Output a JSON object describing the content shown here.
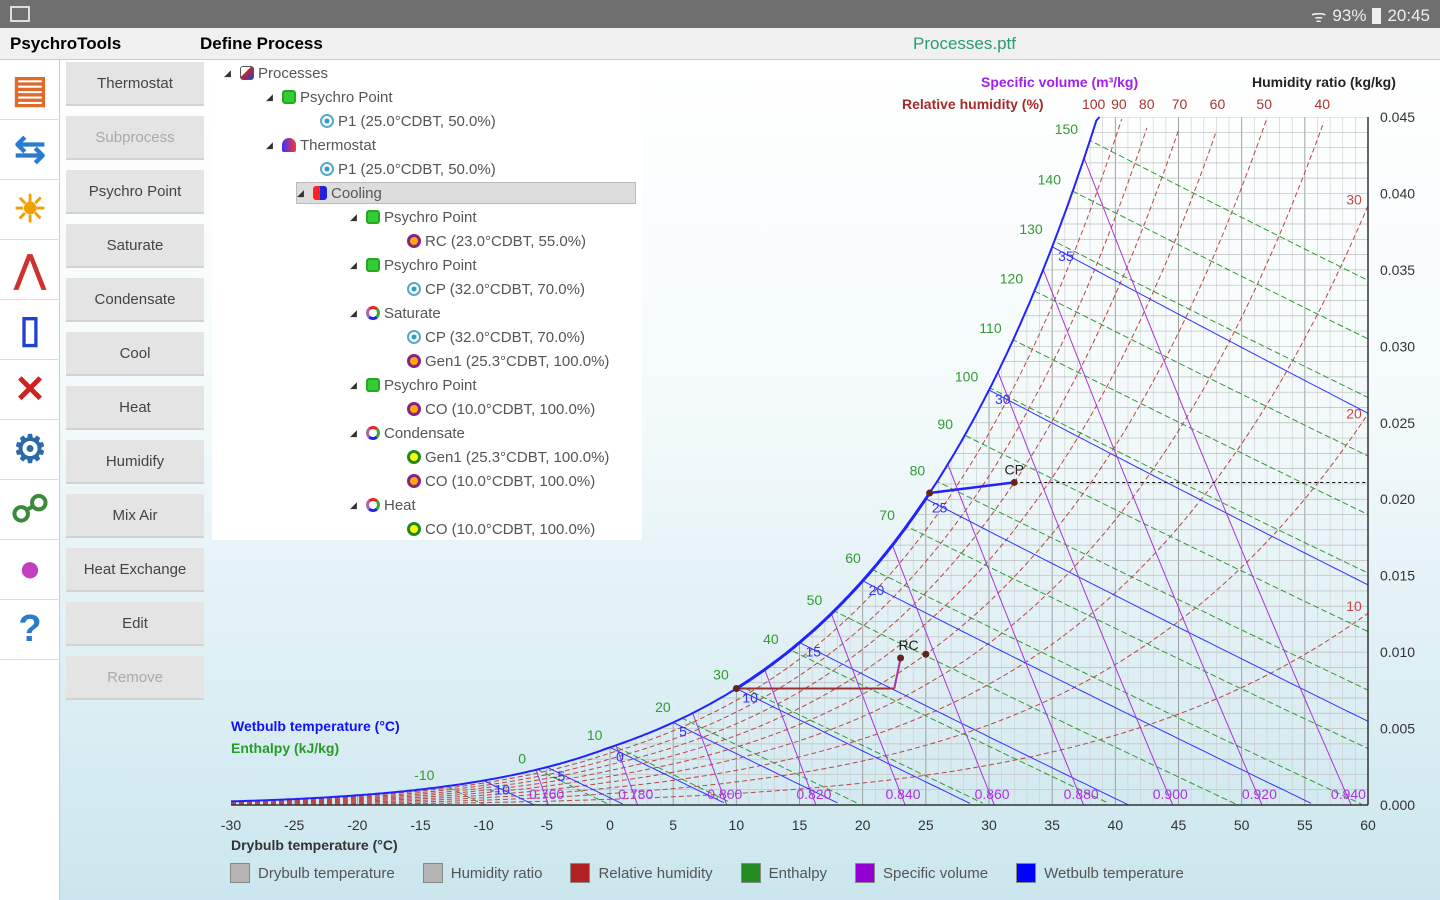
{
  "status": {
    "battery": "93%",
    "time": "20:45"
  },
  "titlebar": {
    "app": "PsychroTools",
    "page": "Define Process",
    "file": "Processes.ptf"
  },
  "icons": [
    "calculator-icon",
    "process-icon",
    "sun-icon",
    "distribution-icon",
    "document-icon",
    "exchange-icon",
    "gear-icon",
    "nodes-icon",
    "color-wheel-icon",
    "help-icon"
  ],
  "buttons": [
    {
      "label": "Thermostat",
      "enabled": true
    },
    {
      "label": "Subprocess",
      "enabled": false
    },
    {
      "label": "Psychro Point",
      "enabled": true
    },
    {
      "label": "Saturate",
      "enabled": true
    },
    {
      "label": "Condensate",
      "enabled": true
    },
    {
      "label": "Cool",
      "enabled": true
    },
    {
      "label": "Heat",
      "enabled": true
    },
    {
      "label": "Humidify",
      "enabled": true
    },
    {
      "label": "Mix Air",
      "enabled": true
    },
    {
      "label": "Heat Exchange",
      "enabled": true
    },
    {
      "label": "Edit",
      "enabled": true
    },
    {
      "label": "Remove",
      "enabled": false
    }
  ],
  "tree": [
    {
      "label": "Processes",
      "level": 0,
      "icon": "chart",
      "exp": true
    },
    {
      "label": "Psychro Point",
      "level": 1,
      "icon": "square",
      "exp": true
    },
    {
      "label": "P1 (25.0°CDBT, 50.0%)",
      "level": 2,
      "icon": "target"
    },
    {
      "label": "Thermostat",
      "level": 1,
      "icon": "thermostat",
      "exp": true
    },
    {
      "label": "P1 (25.0°CDBT, 50.0%)",
      "level": 2,
      "icon": "target"
    },
    {
      "label": "Cooling",
      "level": 2,
      "icon": "cooling",
      "exp": true,
      "selected": true
    },
    {
      "label": "Psychro Point",
      "level": 3,
      "icon": "square",
      "exp": true
    },
    {
      "label": "RC (23.0°CDBT, 55.0%)",
      "level": 4,
      "icon": "purple"
    },
    {
      "label": "Psychro Point",
      "level": 3,
      "icon": "square",
      "exp": true
    },
    {
      "label": "CP (32.0°CDBT, 70.0%)",
      "level": 4,
      "icon": "target"
    },
    {
      "label": "Saturate",
      "level": 3,
      "icon": "cycle",
      "exp": true
    },
    {
      "label": "CP (32.0°CDBT, 70.0%)",
      "level": 4,
      "icon": "target"
    },
    {
      "label": "Gen1 (25.3°CDBT, 100.0%)",
      "level": 4,
      "icon": "purple"
    },
    {
      "label": "Psychro Point",
      "level": 3,
      "icon": "square",
      "exp": true
    },
    {
      "label": "CO (10.0°CDBT, 100.0%)",
      "level": 4,
      "icon": "purple"
    },
    {
      "label": "Condensate",
      "level": 3,
      "icon": "cycle",
      "exp": true
    },
    {
      "label": "Gen1 (25.3°CDBT, 100.0%)",
      "level": 4,
      "icon": "green"
    },
    {
      "label": "CO (10.0°CDBT, 100.0%)",
      "level": 4,
      "icon": "purple"
    },
    {
      "label": "Heat",
      "level": 3,
      "icon": "cycle",
      "exp": true
    },
    {
      "label": "CO (10.0°CDBT, 100.0%)",
      "level": 4,
      "icon": "green"
    }
  ],
  "chart_data": {
    "type": "line",
    "title": "Psychrometric chart",
    "xlabel": "Drybulb temperature (°C)",
    "ylabel": "Humidity ratio (kg/kg)",
    "xlim": [
      -30,
      60
    ],
    "ylim": [
      0,
      0.045
    ],
    "xticks": [
      -30,
      -25,
      -20,
      -15,
      -10,
      -5,
      0,
      5,
      10,
      15,
      20,
      25,
      30,
      35,
      40,
      45,
      50,
      55,
      60
    ],
    "yticks": [
      "0.000",
      "0.005",
      "0.010",
      "0.015",
      "0.020",
      "0.025",
      "0.030",
      "0.035",
      "0.040",
      "0.045"
    ],
    "rh_label": "Relative humidity (%)",
    "rh_values": [
      10,
      20,
      30,
      40,
      50,
      60,
      70,
      80,
      90,
      100
    ],
    "sv_label": "Specific volume (m³/kg)",
    "sv_values": [
      "0.760",
      "0.780",
      "0.800",
      "0.820",
      "0.840",
      "0.860",
      "0.880",
      "0.900",
      "0.920",
      "0.940"
    ],
    "enthalpy_label": "Enthalpy (kJ/kg)",
    "enthalpy_values": [
      -10,
      0,
      10,
      20,
      30,
      40,
      50,
      60,
      70,
      80,
      90,
      100,
      110,
      120,
      130,
      140,
      150
    ],
    "wetbulb_label": "Wetbulb temperature (°C)",
    "wetbulb_values": [
      -10,
      -5,
      0,
      5,
      10,
      15,
      20,
      25,
      30,
      35
    ],
    "points": [
      {
        "name": "CP",
        "t": 32.0,
        "rh": 70
      },
      {
        "name": "Gen1",
        "t": 25.3,
        "rh": 100
      },
      {
        "name": "CO",
        "t": 10.0,
        "rh": 100
      },
      {
        "name": "RC",
        "t": 23.0,
        "rh": 55
      },
      {
        "name": "P1",
        "t": 25.0,
        "rh": 50
      }
    ],
    "legend": [
      {
        "name": "Drybulb temperature",
        "color": "#b4b4b4"
      },
      {
        "name": "Humidity ratio",
        "color": "#b4b4b4"
      },
      {
        "name": "Relative humidity",
        "color": "#b22222"
      },
      {
        "name": "Enthalpy",
        "color": "#228b22"
      },
      {
        "name": "Specific volume",
        "color": "#9400d3"
      },
      {
        "name": "Wetbulb temperature",
        "color": "#0000ff"
      }
    ]
  }
}
